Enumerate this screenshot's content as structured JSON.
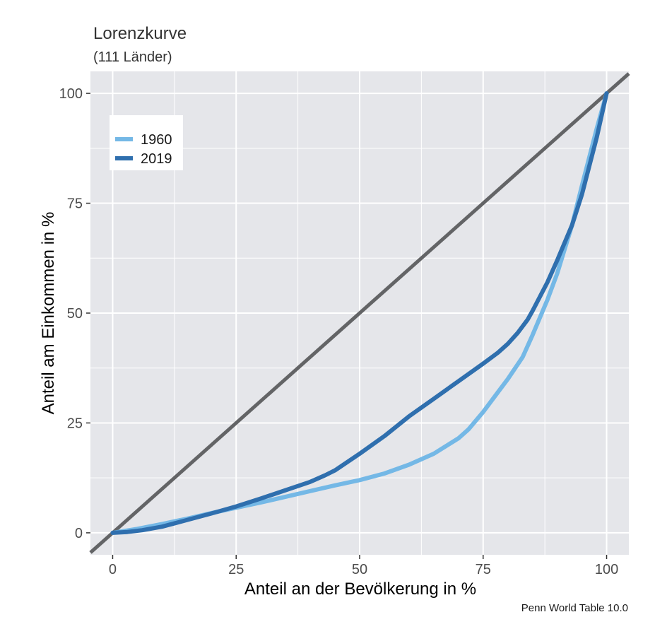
{
  "chart_data": {
    "type": "line",
    "title": "Lorenzkurve",
    "subtitle": "(111 Länder)",
    "xlabel": "Anteil an der Bevölkerung in %",
    "ylabel": "Anteil am Einkommen in %",
    "caption": "Penn World Table 10.0",
    "xlim": [
      -4.5,
      104.5
    ],
    "ylim": [
      -5,
      105
    ],
    "x_ticks": [
      0,
      25,
      50,
      75,
      100
    ],
    "y_ticks": [
      0,
      25,
      50,
      75,
      100
    ],
    "x_tick_labels": [
      "0",
      "25",
      "50",
      "75",
      "100"
    ],
    "y_tick_labels": [
      "0",
      "25",
      "50",
      "75",
      "100"
    ],
    "grid": true,
    "legend_position": "top-left inside",
    "equality_line": {
      "color": "#636466",
      "x": [
        -4.5,
        104.5
      ],
      "y": [
        -4.5,
        104.5
      ]
    },
    "series": [
      {
        "name": "1960",
        "color": "#74b8e6",
        "x": [
          0,
          5,
          10,
          15,
          20,
          25,
          30,
          35,
          40,
          45,
          50,
          55,
          60,
          65,
          70,
          72,
          75,
          78,
          80,
          83,
          85,
          88,
          90,
          93,
          95,
          98,
          100
        ],
        "y": [
          0,
          0.9,
          2.0,
          3.2,
          4.5,
          5.7,
          6.9,
          8.2,
          9.5,
          10.8,
          12.0,
          13.5,
          15.5,
          18.0,
          21.5,
          23.5,
          27.5,
          32.0,
          35.0,
          40.0,
          45.0,
          53.0,
          59.0,
          70.0,
          79.0,
          92.0,
          100
        ]
      },
      {
        "name": "2019",
        "color": "#2f6fae",
        "x": [
          0,
          3,
          6,
          10,
          15,
          20,
          25,
          30,
          35,
          40,
          43,
          45,
          50,
          55,
          60,
          65,
          70,
          75,
          78,
          80,
          82,
          84,
          85,
          88,
          90,
          93,
          95,
          98,
          100
        ],
        "y": [
          0,
          0.2,
          0.6,
          1.4,
          2.9,
          4.4,
          6.0,
          7.8,
          9.7,
          11.6,
          13.1,
          14.2,
          18.0,
          22.0,
          26.5,
          30.5,
          34.5,
          38.5,
          41.0,
          43.0,
          45.5,
          48.5,
          50.5,
          57.0,
          62.0,
          70.0,
          77.0,
          90.0,
          100
        ]
      }
    ]
  }
}
